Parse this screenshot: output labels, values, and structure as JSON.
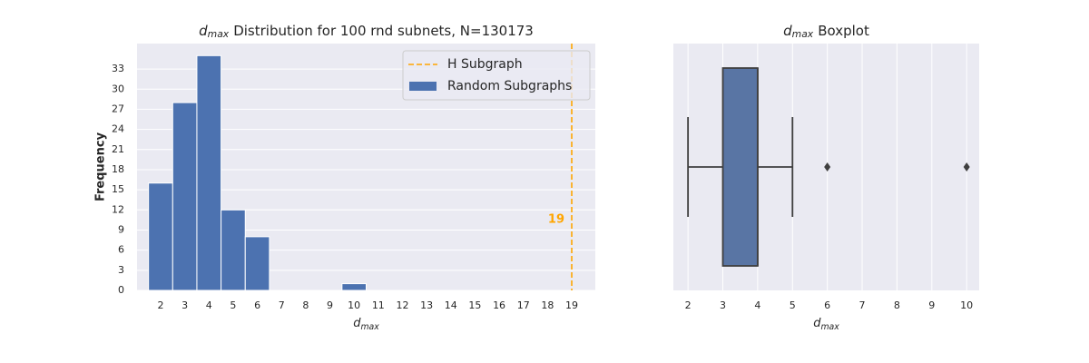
{
  "chart_data": [
    {
      "type": "histogram",
      "title": {
        "var": "d",
        "sub": "max",
        "rest": "Distribution for 100 rnd subnets, N=130173"
      },
      "xlabel": {
        "var": "d",
        "sub": "max"
      },
      "ylabel": "Frequency",
      "bins": [
        1.5,
        2.5,
        3.5,
        4.5,
        5.5,
        6.5,
        7.5,
        8.5,
        9.5,
        10.5
      ],
      "series": [
        {
          "name": "Random Subgraphs",
          "color": "#4c72b0",
          "values": [
            16,
            28,
            35,
            12,
            8,
            0,
            0,
            0,
            1
          ]
        }
      ],
      "vline": {
        "name": "H Subgraph",
        "x": 19,
        "color": "#ffa500"
      },
      "xlim": [
        1.025,
        19.975
      ],
      "ylim": [
        0,
        36.8
      ],
      "xticks": [
        2,
        3,
        4,
        5,
        6,
        7,
        8,
        9,
        10,
        11,
        12,
        13,
        14,
        15,
        16,
        17,
        18,
        19
      ],
      "yticks": [
        0,
        3,
        6,
        9,
        12,
        15,
        18,
        21,
        24,
        27,
        30,
        33
      ],
      "grid": true,
      "legend": "upper right"
    },
    {
      "type": "box",
      "title": {
        "var": "d",
        "sub": "max",
        "rest": "Boxplot"
      },
      "xlabel": {
        "var": "d",
        "sub": "max"
      },
      "whislo": 2,
      "q1": 3,
      "med": 4,
      "q3": 4,
      "whishi": 5,
      "fliers": [
        6,
        10
      ],
      "color": "#5975a4",
      "xlim": [
        1.58,
        10.36
      ],
      "xticks": [
        2,
        3,
        4,
        5,
        6,
        7,
        8,
        9,
        10
      ],
      "grid": true
    }
  ]
}
